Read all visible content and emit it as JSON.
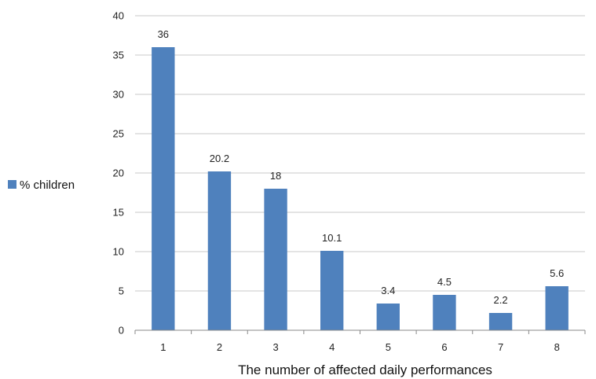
{
  "chart_data": {
    "type": "bar",
    "categories": [
      "1",
      "2",
      "3",
      "4",
      "5",
      "6",
      "7",
      "8"
    ],
    "series": [
      {
        "name": "% children",
        "values": [
          36,
          20.2,
          18,
          10.1,
          3.4,
          4.5,
          2.2,
          5.6
        ],
        "color": "#4f81bd"
      }
    ],
    "data_labels": [
      "36",
      "20.2",
      "18",
      "10.1",
      "3.4",
      "4.5",
      "2.2",
      "5.6"
    ],
    "title": "",
    "xlabel": "The number of affected daily performances",
    "ylabel": "",
    "ylim": [
      0,
      40
    ],
    "yticks": [
      "0",
      "5",
      "10",
      "15",
      "20",
      "25",
      "30",
      "35",
      "40"
    ],
    "grid": true,
    "legend_position": "left"
  }
}
